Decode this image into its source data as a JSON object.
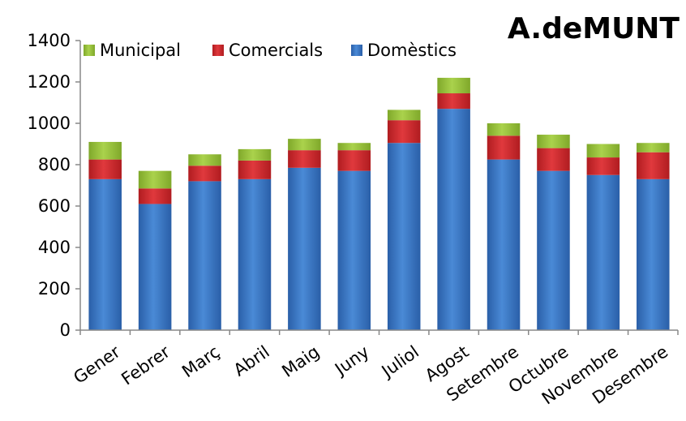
{
  "chart_data": {
    "type": "bar",
    "stacked": true,
    "title": "A.deMUNT",
    "xlabel": "",
    "ylabel": "",
    "ylim": [
      0,
      1400
    ],
    "yticks": [
      0,
      200,
      400,
      600,
      800,
      1000,
      1200,
      1400
    ],
    "grid": false,
    "legend_position": "top",
    "categories": [
      "Gener",
      "Febrer",
      "Març",
      "Abril",
      "Maig",
      "Juny",
      "Juliol",
      "Agost",
      "Setembre",
      "Octubre",
      "Novembre",
      "Desembre"
    ],
    "series": [
      {
        "name": "Domèstics",
        "color": "#3a78c8",
        "values": [
          730,
          610,
          720,
          730,
          785,
          770,
          905,
          1070,
          825,
          770,
          750,
          730
        ]
      },
      {
        "name": "Comercials",
        "color": "#d4262b",
        "values": [
          95,
          75,
          75,
          90,
          85,
          100,
          110,
          75,
          115,
          110,
          85,
          130
        ]
      },
      {
        "name": "Municipal",
        "color": "#98c33a",
        "values": [
          85,
          85,
          55,
          55,
          55,
          35,
          50,
          75,
          60,
          65,
          65,
          45
        ]
      }
    ],
    "legend_order": [
      "Municipal",
      "Comercials",
      "Domèstics"
    ]
  }
}
